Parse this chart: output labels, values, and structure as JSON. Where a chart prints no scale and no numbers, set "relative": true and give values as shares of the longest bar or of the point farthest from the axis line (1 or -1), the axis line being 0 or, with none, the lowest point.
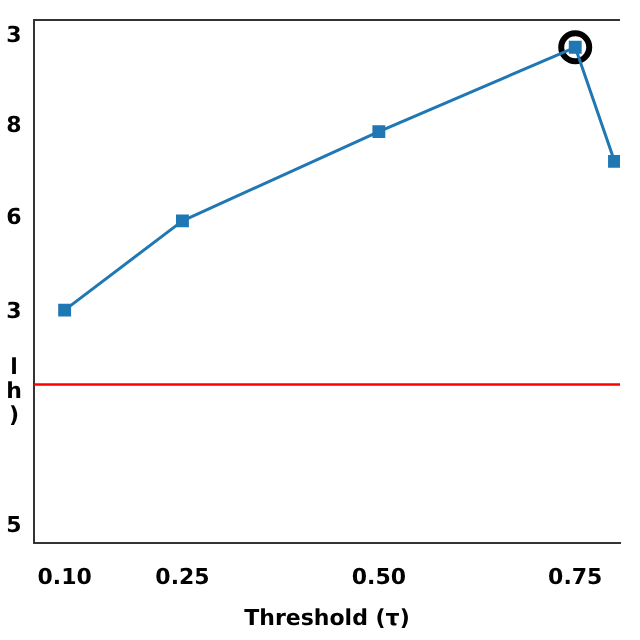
{
  "chart_data": {
    "type": "line",
    "xlabel": "Threshold (τ)",
    "relative": true,
    "xlim": [
      0.061,
      0.807
    ],
    "xticks": [
      {
        "value": 0.1,
        "label": "0.10"
      },
      0.25,
      {
        "value": 0.5,
        "label": "0.50"
      },
      0.75
    ],
    "annotations": [
      "3",
      "8",
      "6",
      "3",
      "l\nh\n)",
      "5"
    ],
    "series": [
      {
        "color": "#1f77b4",
        "x": [
          0.1,
          0.25,
          0.5,
          0.75,
          0.8
        ],
        "values": [
          0.47,
          0.65,
          0.83,
          1,
          0.77
        ],
        "marker": "square"
      },
      {
        "type": "scatter",
        "color": "#000000",
        "x": [
          0.75
        ],
        "values": [
          1
        ],
        "marker": "circle"
      }
    ],
    "ref_lines": [
      {
        "axis": "y",
        "value": 0.32,
        "color": "#ff0000"
      }
    ],
    "grid": false,
    "legend": false
  }
}
